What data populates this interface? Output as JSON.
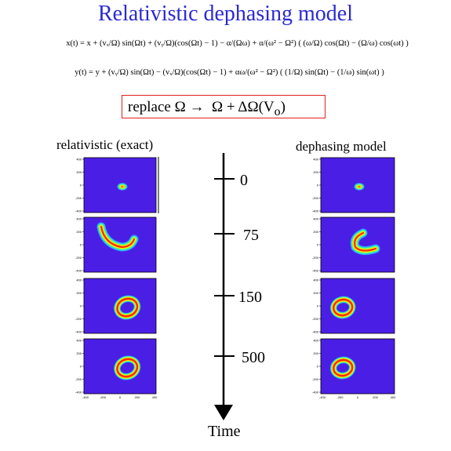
{
  "title": "Relativistic dephasing model",
  "equations": {
    "x_line": "x(t) = x + (vₓ/Ω) sin(Ωt) + (vᵧ/Ω)(cos(Ωt) − 1) − α/(Ωω) + α/(ω² − Ω²) ( (ω/Ω) cos(Ωt) − (Ω/ω) cos(ωt) )",
    "y_line": "y(t) = y + (vᵧ/Ω) sin(Ωt) − (vₓ/Ω)(cos(Ωt) − 1) + αω/(ω² − Ω²) ( (1/Ω) sin(Ωt) − (1/ω) sin(ωt) )"
  },
  "replace": {
    "word": "replace",
    "from": "Ω",
    "arrow": "→",
    "to": "Ω + ΔΩ(V",
    "subscript": "o",
    "close": ")"
  },
  "columns": {
    "left": "relativistic (exact)",
    "right": "dephasing model"
  },
  "timeline": {
    "caption": "Time",
    "ticks": [
      "0",
      "75",
      "150",
      "500"
    ]
  },
  "panel_axis_ticks": {
    "y": [
      "400",
      "200",
      "0",
      "-200",
      "-400"
    ],
    "x": [
      "-400",
      "-200",
      "0",
      "200",
      "400"
    ]
  },
  "colors": {
    "title": "#2a2ad0",
    "plot_background": "#4b1ee6",
    "box_border": "#e02020"
  },
  "panels": {
    "left": [
      {
        "time": "0",
        "shape": "spot"
      },
      {
        "time": "75",
        "shape": "crescent"
      },
      {
        "time": "150",
        "shape": "ring"
      },
      {
        "time": "500",
        "shape": "ring"
      }
    ],
    "right": [
      {
        "time": "0",
        "shape": "spot"
      },
      {
        "time": "75",
        "shape": "crescent"
      },
      {
        "time": "150",
        "shape": "ring"
      },
      {
        "time": "500",
        "shape": "ring"
      }
    ]
  }
}
